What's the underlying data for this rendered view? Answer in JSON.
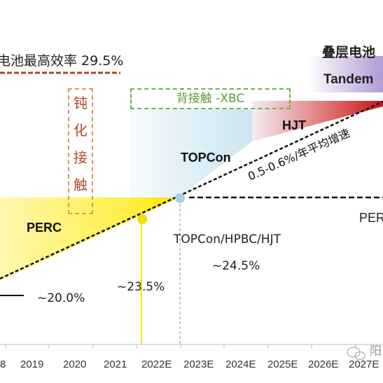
{
  "record_label": "电池最高效率 29.5%",
  "tandem_cn": "叠层电池",
  "tandem_en": "Tandem",
  "passivation_chars": [
    "钝",
    "化",
    "接",
    "触"
  ],
  "xbc_label": "背接触 -XBC",
  "hjt_label": "HJT",
  "topcon_label": "TOPCon",
  "growth_label": "0.5-0.6%/年平均增速",
  "perc_label": "PERC",
  "perc_right_label": "PERC",
  "next_gen_label": "TOPCon/HPBC/HJT",
  "next_gen_eff": "~24.5%",
  "perc_peak_eff": "~23.5%",
  "base_eff": "~20.0%",
  "years": [
    "8",
    "2019",
    "2020",
    "2021",
    "2022E",
    "2023E",
    "2024E",
    "2025E",
    "2026E",
    "2027E"
  ],
  "watermark": "阳",
  "colors": {
    "record_line": "#b5441e",
    "perc_fill": "#ffea33",
    "topcon_fill": "#cfe6ef",
    "hjt_fill": "#c8252a",
    "tandem_fill": "#b7a0d8",
    "passivation_border": "#d89a55",
    "xbc_border": "#6fb04f"
  }
}
